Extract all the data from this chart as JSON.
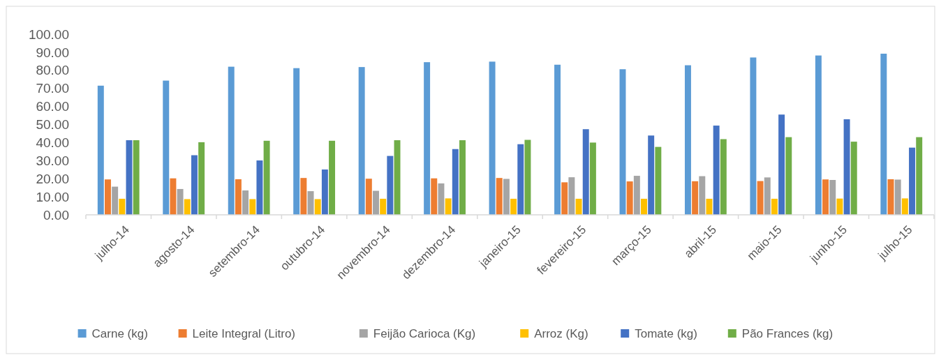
{
  "chart_data": {
    "type": "bar",
    "categories": [
      "julho-14",
      "agosto-14",
      "setembro-14",
      "outubro-14",
      "novembro-14",
      "dezembro-14",
      "janeiro-15",
      "fevereiro-15",
      "março-15",
      "abril-15",
      "maio-15",
      "junho-15",
      "julho-15"
    ],
    "series": [
      {
        "name": "Carne (kg)",
        "color": "#5b9bd5",
        "values": [
          71.5,
          74.3,
          82,
          81.2,
          81.8,
          84.5,
          84.8,
          83.1,
          80.6,
          82.8,
          87.1,
          88.2,
          89.2
        ]
      },
      {
        "name": "Leite Integral (Litro)",
        "color": "#ed7d31",
        "values": [
          19.6,
          20.2,
          19.7,
          20.4,
          20,
          20.2,
          20.4,
          18,
          18.5,
          18.6,
          18.7,
          19.6,
          19.7
        ]
      },
      {
        "name": "Feijão Carioca (Kg)",
        "color": "#a5a5a5",
        "values": [
          15.6,
          14.3,
          13.5,
          13.1,
          13.3,
          17.4,
          19.9,
          20.8,
          21.6,
          21.4,
          20.7,
          19.3,
          19.5
        ]
      },
      {
        "name": "Arroz (Kg)",
        "color": "#ffc000",
        "values": [
          8.9,
          8.7,
          8.7,
          8.7,
          8.9,
          9.1,
          8.9,
          8.9,
          8.9,
          8.9,
          8.9,
          9,
          9.1
        ]
      },
      {
        "name": "Tomate (kg)",
        "color": "#4472c4",
        "values": [
          41.3,
          33,
          30.1,
          25.1,
          32.6,
          36.4,
          39.1,
          47.4,
          43.9,
          49.4,
          55.5,
          52.9,
          37.2
        ]
      },
      {
        "name": "Pão Frances (kg)",
        "color": "#70ad47",
        "values": [
          41.3,
          40.2,
          41,
          41,
          41.3,
          41.3,
          41.5,
          40,
          37.6,
          41.9,
          43,
          40.5,
          43
        ]
      }
    ],
    "ylim": [
      0,
      100
    ],
    "yticks": [
      {
        "value": 0,
        "label": "0.00"
      },
      {
        "value": 10,
        "label": "10.00"
      },
      {
        "value": 20,
        "label": "20.00"
      },
      {
        "value": 30,
        "label": "30.00"
      },
      {
        "value": 40,
        "label": "40.00"
      },
      {
        "value": 50,
        "label": "50.00"
      },
      {
        "value": 60,
        "label": "60.00"
      },
      {
        "value": 70,
        "label": "70.00"
      },
      {
        "value": 80,
        "label": "80.00"
      },
      {
        "value": 90,
        "label": "90.00"
      },
      {
        "value": 100,
        "label": "100.00"
      }
    ],
    "legend": "bottom"
  }
}
